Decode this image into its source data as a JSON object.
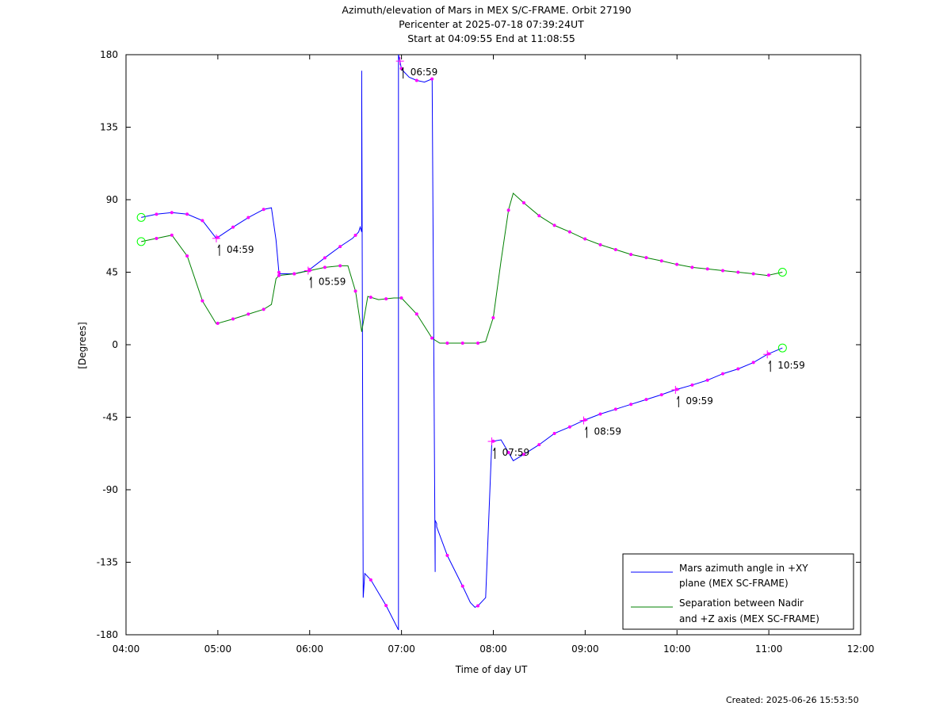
{
  "chart_data": {
    "type": "line",
    "title": "Azimuth/elevation of Mars in MEX S/C-FRAME.  Orbit 27190",
    "subtitle_lines": [
      "Pericenter at 2025-07-18 07:39:24UT",
      "Start at 04:09:55 End at 11:08:55"
    ],
    "xlabel": "Time of day UT",
    "ylabel": "[Degrees]",
    "xlim": [
      "04:00",
      "12:00"
    ],
    "ylim": [
      -180,
      180
    ],
    "x_ticks": [
      "04:00",
      "05:00",
      "06:00",
      "07:00",
      "08:00",
      "09:00",
      "10:00",
      "11:00",
      "12:00"
    ],
    "y_ticks": [
      "180",
      "135",
      "90",
      "45",
      "0",
      "-45",
      "-90",
      "-135",
      "-180"
    ],
    "grid": false,
    "legend_placement": "bottom-right",
    "colors": {
      "azimuth": "#0000ff",
      "separation": "#008000",
      "markers": "#ff00ff",
      "endpoints": "#00ff00"
    },
    "series": [
      {
        "name": "Mars azimuth angle in +XY plane (MEX SC-FRAME)",
        "legend_lines": [
          "Mars azimuth angle in +XY",
          "plane (MEX SC-FRAME)"
        ],
        "color": "#0000ff",
        "x": [
          "04:09:55",
          "04:20",
          "04:30",
          "04:40",
          "04:50",
          "04:59",
          "05:10",
          "05:20",
          "05:30",
          "05:35",
          "05:38",
          "05:40",
          "05:50",
          "05:59",
          "06:10",
          "06:20",
          "06:28",
          "06:32",
          "06:33",
          "06:34",
          "06:34",
          "06:35",
          "06:36",
          "06:40",
          "06:50",
          "06:58",
          "06:58",
          "06:59",
          "07:00",
          "07:05",
          "07:10",
          "07:15",
          "07:20",
          "07:22",
          "07:22",
          "07:23",
          "07:23",
          "07:30",
          "07:40",
          "07:45",
          "07:48",
          "07:50",
          "07:55",
          "07:59",
          "08:05",
          "08:10",
          "08:13",
          "08:20",
          "08:30",
          "08:40",
          "08:50",
          "08:59",
          "09:10",
          "09:20",
          "09:30",
          "09:40",
          "09:50",
          "09:59",
          "10:10",
          "10:20",
          "10:30",
          "10:40",
          "10:50",
          "10:59",
          "11:08:55"
        ],
        "y": [
          79,
          81,
          82,
          81,
          77,
          66,
          73,
          79,
          84,
          85,
          65,
          44,
          44,
          46,
          54,
          61,
          66,
          70,
          73,
          70,
          170,
          -157,
          -142,
          -146,
          -162,
          -177,
          180,
          176,
          171,
          166,
          164,
          163,
          165,
          -141,
          -109,
          -111,
          -113,
          -131,
          -150,
          -160,
          -163,
          -162,
          -157,
          -60,
          -59,
          -67,
          -72,
          -68,
          -62,
          -55,
          -51,
          -47,
          -43,
          -40,
          -37,
          -34,
          -31,
          -28,
          -25,
          -22,
          -18,
          -15,
          -11,
          -6,
          -2
        ]
      },
      {
        "name": "Separation between Nadir and +Z axis (MEX SC-FRAME)",
        "legend_lines": [
          "Separation between Nadir",
          "and +Z axis (MEX SC-FRAME)"
        ],
        "color": "#008000",
        "x": [
          "04:09:55",
          "04:20",
          "04:30",
          "04:40",
          "04:50",
          "04:59",
          "05:10",
          "05:20",
          "05:30",
          "05:35",
          "05:38",
          "05:40",
          "05:50",
          "06:00",
          "06:10",
          "06:20",
          "06:25",
          "06:30",
          "06:34",
          "06:38",
          "06:45",
          "06:55",
          "07:00",
          "07:10",
          "07:20",
          "07:25",
          "07:30",
          "07:40",
          "07:50",
          "07:55",
          "08:00",
          "08:05",
          "08:10",
          "08:13",
          "08:20",
          "08:30",
          "08:40",
          "08:50",
          "08:59",
          "09:10",
          "09:20",
          "09:30",
          "09:40",
          "09:50",
          "09:59",
          "10:10",
          "10:20",
          "10:30",
          "10:40",
          "10:50",
          "10:59",
          "11:08:55"
        ],
        "y": [
          64,
          66,
          68,
          55,
          27,
          13,
          16,
          19,
          22,
          25,
          41,
          43,
          44,
          46,
          48,
          49,
          49,
          33,
          8,
          30,
          28,
          29,
          29,
          19,
          4,
          1,
          1,
          1,
          1,
          2,
          17,
          52,
          84,
          94,
          88,
          80,
          74,
          70,
          66,
          62,
          59,
          56,
          54,
          52,
          50,
          48,
          47,
          46,
          45,
          44,
          43,
          45
        ]
      }
    ],
    "time_markers": [
      {
        "label": "04:59",
        "series": "azimuth"
      },
      {
        "label": "05:59",
        "series": "azimuth"
      },
      {
        "label": "06:59",
        "series": "azimuth"
      },
      {
        "label": "07:59",
        "series": "azimuth"
      },
      {
        "label": "08:59",
        "series": "azimuth"
      },
      {
        "label": "09:59",
        "series": "azimuth"
      },
      {
        "label": "10:59",
        "series": "azimuth"
      }
    ]
  },
  "footer": {
    "created": "Created: 2025-06-26 15:53:50"
  }
}
